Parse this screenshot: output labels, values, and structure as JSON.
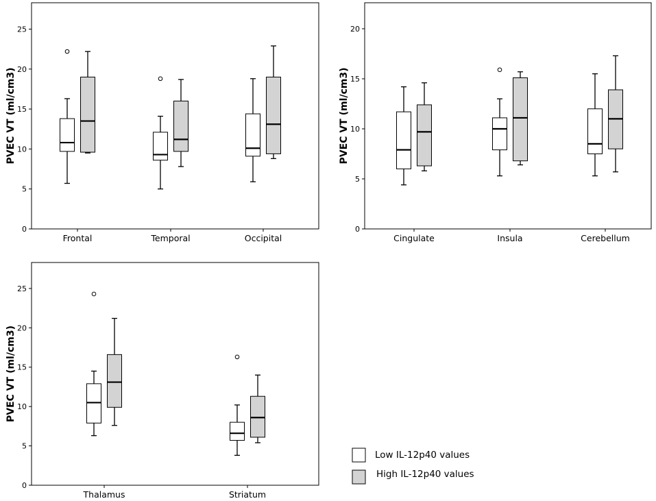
{
  "legend": {
    "low_label": "Low IL-12p40 values",
    "high_label": "High IL-12p40 values",
    "low_color": "#ffffff",
    "high_color": "#d3d3d3"
  },
  "chart_data": [
    {
      "type": "boxplot",
      "ylabel": "PVEC VT (ml/cm3)",
      "ylim": [
        0,
        28.3
      ],
      "yticks": [
        0,
        5,
        10,
        15,
        20,
        25
      ],
      "categories": [
        "Frontal",
        "Temporal",
        "Occipital"
      ],
      "series": [
        {
          "name": "Low IL-12p40 values",
          "color": "#ffffff",
          "boxes": [
            {
              "min": 5.7,
              "q1": 9.7,
              "median": 10.8,
              "q3": 13.8,
              "max": 16.3,
              "outliers": [
                22.2
              ]
            },
            {
              "min": 5.0,
              "q1": 8.6,
              "median": 9.3,
              "q3": 12.1,
              "max": 14.1,
              "outliers": [
                18.8
              ]
            },
            {
              "min": 5.9,
              "q1": 9.1,
              "median": 10.1,
              "q3": 14.4,
              "max": 18.8,
              "outliers": []
            }
          ]
        },
        {
          "name": "High IL-12p40 values",
          "color": "#d3d3d3",
          "boxes": [
            {
              "min": 9.5,
              "q1": 9.6,
              "median": 13.5,
              "q3": 19.0,
              "max": 22.2,
              "outliers": []
            },
            {
              "min": 7.8,
              "q1": 9.7,
              "median": 11.2,
              "q3": 16.0,
              "max": 18.7,
              "outliers": []
            },
            {
              "min": 8.8,
              "q1": 9.4,
              "median": 13.1,
              "q3": 19.0,
              "max": 22.9,
              "outliers": []
            }
          ]
        }
      ]
    },
    {
      "type": "boxplot",
      "ylabel": "PVEC VT (ml/cm3)",
      "ylim": [
        0,
        22.6
      ],
      "yticks": [
        0,
        5,
        10,
        15,
        20
      ],
      "categories": [
        "Cingulate",
        "Insula",
        "Cerebellum"
      ],
      "series": [
        {
          "name": "Low IL-12p40 values",
          "color": "#ffffff",
          "boxes": [
            {
              "min": 4.4,
              "q1": 6.0,
              "median": 7.9,
              "q3": 11.7,
              "max": 14.2,
              "outliers": []
            },
            {
              "min": 5.3,
              "q1": 7.9,
              "median": 10.0,
              "q3": 11.1,
              "max": 13.0,
              "outliers": [
                15.9
              ]
            },
            {
              "min": 5.3,
              "q1": 7.5,
              "median": 8.5,
              "q3": 12.0,
              "max": 15.5,
              "outliers": []
            }
          ]
        },
        {
          "name": "High IL-12p40 values",
          "color": "#d3d3d3",
          "boxes": [
            {
              "min": 5.8,
              "q1": 6.3,
              "median": 9.7,
              "q3": 12.4,
              "max": 14.6,
              "outliers": []
            },
            {
              "min": 6.4,
              "q1": 6.8,
              "median": 11.1,
              "q3": 15.1,
              "max": 15.7,
              "outliers": []
            },
            {
              "min": 5.7,
              "q1": 8.0,
              "median": 11.0,
              "q3": 13.9,
              "max": 17.3,
              "outliers": []
            }
          ]
        }
      ]
    },
    {
      "type": "boxplot",
      "ylabel": "PVEC VT (ml/cm3)",
      "ylim": [
        0,
        28.3
      ],
      "yticks": [
        0,
        5,
        10,
        15,
        20,
        25
      ],
      "categories": [
        "Thalamus",
        "Striatum"
      ],
      "series": [
        {
          "name": "Low IL-12p40 values",
          "color": "#ffffff",
          "boxes": [
            {
              "min": 6.3,
              "q1": 7.9,
              "median": 10.5,
              "q3": 12.9,
              "max": 14.5,
              "outliers": [
                24.3
              ]
            },
            {
              "min": 3.8,
              "q1": 5.7,
              "median": 6.6,
              "q3": 8.0,
              "max": 10.2,
              "outliers": [
                16.3
              ]
            }
          ]
        },
        {
          "name": "High IL-12p40 values",
          "color": "#d3d3d3",
          "boxes": [
            {
              "min": 7.6,
              "q1": 9.9,
              "median": 13.1,
              "q3": 16.6,
              "max": 21.2,
              "outliers": []
            },
            {
              "min": 5.4,
              "q1": 6.1,
              "median": 8.6,
              "q3": 11.3,
              "max": 14.0,
              "outliers": []
            }
          ]
        }
      ]
    }
  ]
}
